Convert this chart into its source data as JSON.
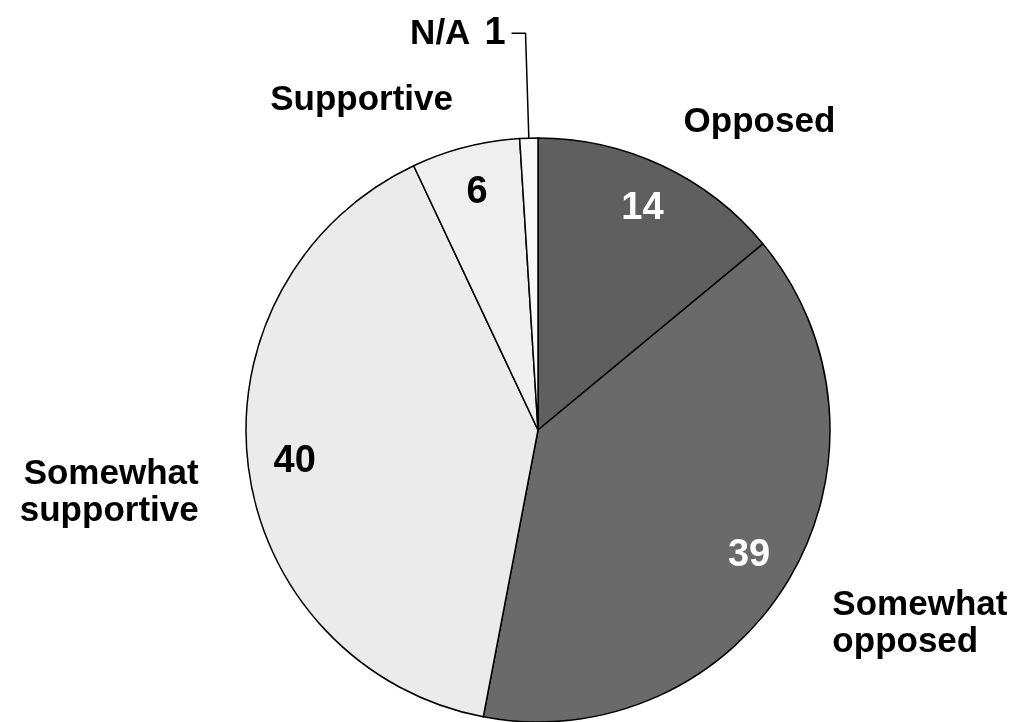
{
  "chart_data": {
    "type": "pie",
    "categories": [
      "Opposed",
      "Somewhat opposed",
      "Somewhat supportive",
      "Supportive",
      "N/A"
    ],
    "values": [
      14,
      39,
      40,
      6,
      1
    ],
    "colors": [
      "#5f5f5f",
      "#6a6a6a",
      "#ebebeb",
      "#efefef",
      "#f8f8f8"
    ],
    "data_labels": true
  }
}
